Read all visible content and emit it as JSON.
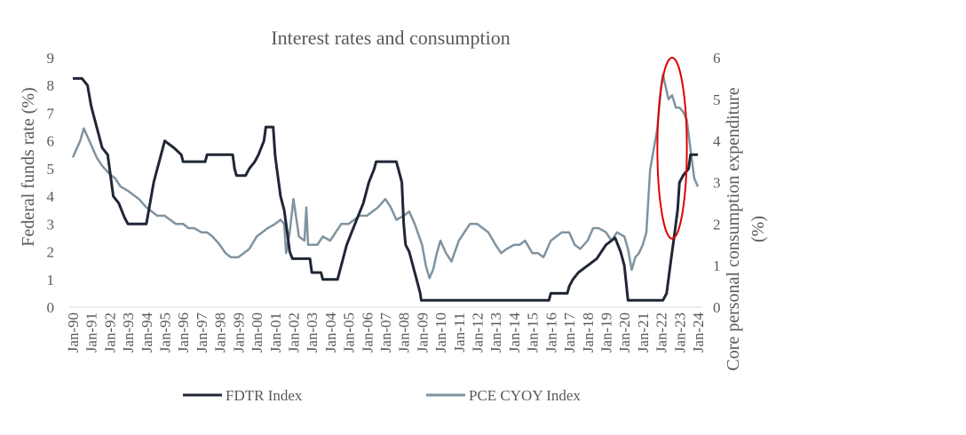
{
  "chart_data": {
    "type": "line",
    "title": "Interest rates and consumption",
    "x_ticks": [
      "Jan-90",
      "Jan-91",
      "Jan-92",
      "Jan-93",
      "Jan-94",
      "Jan-95",
      "Jan-96",
      "Jan-97",
      "Jan-98",
      "Jan-99",
      "Jan-00",
      "Jan-01",
      "Jan-02",
      "Jan-03",
      "Jan-04",
      "Jan-05",
      "Jan-06",
      "Jan-07",
      "Jan-08",
      "Jan-09",
      "Jan-10",
      "Jan-11",
      "Jan-12",
      "Jan-13",
      "Jan-14",
      "Jan-15",
      "Jan-16",
      "Jan-17",
      "Jan-18",
      "Jan-19",
      "Jan-20",
      "Jan-21",
      "Jan-22",
      "Jan-23",
      "Jan-24"
    ],
    "xlim": [
      1990,
      2024
    ],
    "y_left": {
      "label": "Federal funds rate (%)",
      "lim": [
        0,
        9
      ],
      "ticks": [
        "0",
        "1",
        "2",
        "3",
        "4",
        "5",
        "6",
        "7",
        "8",
        "9"
      ]
    },
    "y_right": {
      "label": "Core personal consumption expenditure (%)",
      "lim": [
        0,
        6
      ],
      "ticks": [
        "0",
        "1",
        "2",
        "3",
        "4",
        "5",
        "6"
      ]
    },
    "legend_position": "bottom",
    "grid": false,
    "annotation": {
      "shape": "ellipse",
      "color": "#e00000",
      "x_range": [
        2021.8,
        2023.4
      ],
      "y_right_range": [
        1.65,
        6.0
      ]
    },
    "series": [
      {
        "name": "FDTR Index",
        "axis": "left",
        "color": "#1f2736",
        "x": [
          1990.0,
          1990.5,
          1990.8,
          1991.0,
          1991.3,
          1991.6,
          1991.9,
          1992.2,
          1992.5,
          1992.8,
          1993.0,
          1994.0,
          1994.2,
          1994.4,
          1994.6,
          1994.8,
          1995.0,
          1995.5,
          1995.9,
          1996.0,
          1997.2,
          1997.3,
          1998.7,
          1998.8,
          1998.9,
          1999.4,
          1999.6,
          1999.9,
          2000.1,
          2000.4,
          2000.5,
          2000.9,
          2001.0,
          2001.1,
          2001.3,
          2001.5,
          2001.7,
          2001.8,
          2001.95,
          2002.9,
          2003.0,
          2003.5,
          2003.6,
          2004.4,
          2004.6,
          2004.9,
          2005.2,
          2005.5,
          2005.8,
          2006.1,
          2006.4,
          2006.5,
          2007.6,
          2007.8,
          2007.9,
          2008.0,
          2008.1,
          2008.3,
          2008.7,
          2008.9,
          2008.95,
          2015.9,
          2016.0,
          2016.9,
          2017.0,
          2017.2,
          2017.5,
          2018.0,
          2018.5,
          2019.0,
          2019.5,
          2019.8,
          2019.9,
          2020.0,
          2020.2,
          2022.1,
          2022.3,
          2022.5,
          2022.7,
          2022.9,
          2023.0,
          2023.2,
          2023.5,
          2023.6,
          2024.0
        ],
        "values": [
          8.25,
          8.25,
          8.0,
          7.25,
          6.5,
          5.75,
          5.5,
          4.0,
          3.75,
          3.25,
          3.0,
          3.0,
          3.75,
          4.5,
          5.0,
          5.5,
          6.0,
          5.75,
          5.5,
          5.25,
          5.25,
          5.5,
          5.5,
          5.0,
          4.75,
          4.75,
          5.0,
          5.25,
          5.5,
          6.0,
          6.5,
          6.5,
          5.5,
          5.0,
          4.0,
          3.5,
          2.5,
          2.0,
          1.75,
          1.75,
          1.25,
          1.25,
          1.0,
          1.0,
          1.5,
          2.25,
          2.75,
          3.25,
          3.75,
          4.5,
          5.0,
          5.25,
          5.25,
          4.75,
          4.5,
          3.0,
          2.25,
          2.0,
          1.0,
          0.5,
          0.25,
          0.25,
          0.5,
          0.5,
          0.75,
          1.0,
          1.25,
          1.5,
          1.75,
          2.25,
          2.5,
          2.0,
          1.75,
          1.5,
          0.25,
          0.25,
          0.5,
          1.5,
          2.5,
          3.5,
          4.5,
          4.75,
          5.0,
          5.5,
          5.5
        ]
      },
      {
        "name": "PCE CYOY Index",
        "axis": "right",
        "color": "#7f939f",
        "x": [
          1990.0,
          1990.2,
          1990.4,
          1990.6,
          1990.8,
          1991.0,
          1991.3,
          1991.6,
          1992.0,
          1992.3,
          1992.6,
          1993.0,
          1993.3,
          1993.6,
          1994.0,
          1994.3,
          1994.6,
          1995.0,
          1995.3,
          1995.6,
          1996.0,
          1996.3,
          1996.6,
          1997.0,
          1997.3,
          1997.6,
          1998.0,
          1998.3,
          1998.6,
          1999.0,
          1999.3,
          1999.6,
          2000.0,
          2000.3,
          2000.6,
          2001.0,
          2001.3,
          2001.5,
          2001.6,
          2001.8,
          2002.0,
          2002.3,
          2002.6,
          2002.7,
          2002.8,
          2003.0,
          2003.3,
          2003.6,
          2004.0,
          2004.3,
          2004.6,
          2005.0,
          2005.3,
          2005.6,
          2006.0,
          2006.3,
          2006.6,
          2007.0,
          2007.3,
          2007.6,
          2008.0,
          2008.3,
          2008.6,
          2009.0,
          2009.2,
          2009.4,
          2009.6,
          2009.8,
          2010.0,
          2010.3,
          2010.6,
          2011.0,
          2011.3,
          2011.6,
          2012.0,
          2012.3,
          2012.6,
          2013.0,
          2013.3,
          2013.6,
          2014.0,
          2014.3,
          2014.6,
          2015.0,
          2015.3,
          2015.6,
          2016.0,
          2016.3,
          2016.6,
          2017.0,
          2017.3,
          2017.6,
          2018.0,
          2018.3,
          2018.6,
          2019.0,
          2019.3,
          2019.6,
          2020.0,
          2020.2,
          2020.4,
          2020.6,
          2020.8,
          2021.0,
          2021.2,
          2021.4,
          2021.6,
          2021.8,
          2022.0,
          2022.1,
          2022.2,
          2022.4,
          2022.6,
          2022.8,
          2023.0,
          2023.2,
          2023.4,
          2023.6,
          2023.8,
          2024.0
        ],
        "values": [
          3.6,
          3.8,
          4.0,
          4.3,
          4.1,
          3.9,
          3.6,
          3.4,
          3.2,
          3.1,
          2.9,
          2.8,
          2.7,
          2.6,
          2.4,
          2.3,
          2.2,
          2.2,
          2.1,
          2.0,
          2.0,
          1.9,
          1.9,
          1.8,
          1.8,
          1.7,
          1.5,
          1.3,
          1.2,
          1.2,
          1.3,
          1.4,
          1.7,
          1.8,
          1.9,
          2.0,
          2.1,
          2.0,
          1.3,
          1.8,
          2.6,
          1.7,
          1.6,
          2.4,
          1.5,
          1.5,
          1.5,
          1.7,
          1.6,
          1.8,
          2.0,
          2.0,
          2.1,
          2.2,
          2.2,
          2.3,
          2.4,
          2.6,
          2.4,
          2.1,
          2.2,
          2.3,
          2.0,
          1.5,
          1.0,
          0.7,
          0.9,
          1.3,
          1.6,
          1.3,
          1.1,
          1.6,
          1.8,
          2.0,
          2.0,
          1.9,
          1.8,
          1.5,
          1.3,
          1.4,
          1.5,
          1.5,
          1.6,
          1.3,
          1.3,
          1.2,
          1.6,
          1.7,
          1.8,
          1.8,
          1.5,
          1.4,
          1.6,
          1.9,
          1.9,
          1.8,
          1.6,
          1.8,
          1.7,
          1.4,
          0.9,
          1.2,
          1.3,
          1.5,
          1.8,
          3.3,
          3.8,
          4.3,
          5.3,
          5.6,
          5.4,
          5.0,
          5.1,
          4.8,
          4.8,
          4.7,
          4.5,
          3.8,
          3.1,
          2.9
        ]
      }
    ]
  }
}
